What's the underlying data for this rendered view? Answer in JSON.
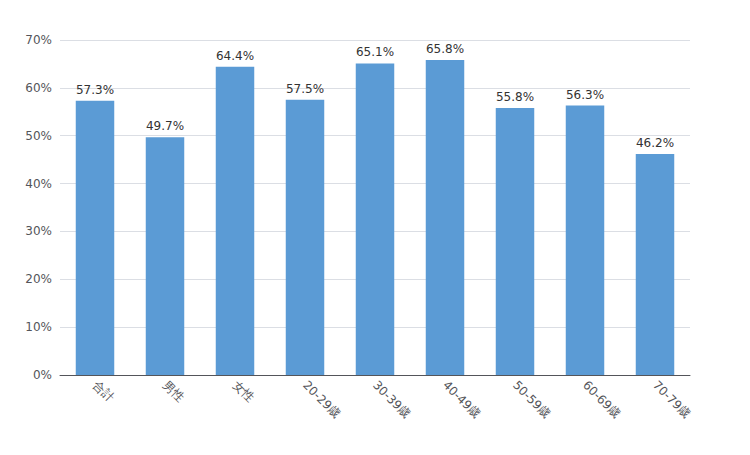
{
  "chart_data": {
    "type": "bar",
    "categories": [
      "合計",
      "男性",
      "女性",
      "20-29歳",
      "30-39歳",
      "40-49歳",
      "50-59歳",
      "60-69歳",
      "70-79歳"
    ],
    "values": [
      57.3,
      49.7,
      64.4,
      57.5,
      65.1,
      65.8,
      55.8,
      56.3,
      46.2
    ],
    "value_labels": [
      "57.3%",
      "49.7%",
      "64.4%",
      "57.5%",
      "65.1%",
      "65.8%",
      "55.8%",
      "56.3%",
      "46.2%"
    ],
    "color": "#5B9BD5",
    "ylim": [
      0,
      70
    ],
    "yticks": [
      {
        "value": 0,
        "label": "0%"
      },
      {
        "value": 10,
        "label": "10%"
      },
      {
        "value": 20,
        "label": "20%"
      },
      {
        "value": 30,
        "label": "30%"
      },
      {
        "value": 40,
        "label": "40%"
      },
      {
        "value": 50,
        "label": "50%"
      },
      {
        "value": 60,
        "label": "60%"
      },
      {
        "value": 70,
        "label": "70%"
      }
    ],
    "grid": true,
    "data_labels": true
  }
}
